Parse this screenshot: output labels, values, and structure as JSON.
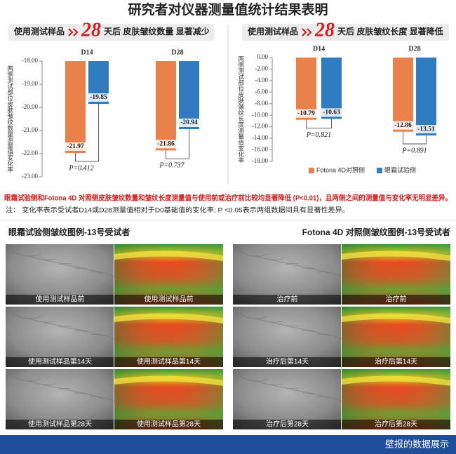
{
  "title": "研究者对仪器测量值统计结果表明",
  "chart_data": [
    {
      "type": "bar",
      "headline": {
        "lead": "使用测试样品",
        "days": 28,
        "rest": "天后 皮肤皱纹数量 显著减少"
      },
      "ylabel": "两侧测试部位皮肤皱纹数量测量值变化率",
      "categories": [
        "D14",
        "D28"
      ],
      "series": [
        {
          "color": "#e8814a",
          "values": [
            -21.97,
            -21.86
          ]
        },
        {
          "color": "#2f7cc0",
          "values": [
            -19.85,
            -20.94
          ]
        }
      ],
      "annotations": [
        "P=0.412",
        "P=0.737"
      ],
      "ylim": [
        -23,
        -18
      ],
      "yticks": [
        {
          "value": -18,
          "label": "-18.00"
        },
        {
          "value": -19,
          "label": "-19.00"
        },
        {
          "value": -20,
          "label": "-20.00"
        },
        {
          "value": -21,
          "label": "-21.00"
        },
        {
          "value": -22,
          "label": "-22.00"
        },
        {
          "value": -23,
          "label": "-23.00"
        }
      ]
    },
    {
      "type": "bar",
      "headline": {
        "lead": "使用测试样品",
        "days": 28,
        "rest": "天后 皮肤皱纹长度 显著降低"
      },
      "ylabel": "两侧测试部位皮肤皱纹长度测量值变化率",
      "categories": [
        "D14",
        "D28"
      ],
      "series": [
        {
          "name": "Fotona 4D对照侧",
          "color": "#e8814a",
          "values": [
            -10.79,
            -12.86
          ]
        },
        {
          "name": "眼霜试验侧",
          "color": "#2f7cc0",
          "values": [
            -10.63,
            -13.51
          ]
        }
      ],
      "annotations": [
        "P=0.821",
        "P=0.891"
      ],
      "legend": "bottom",
      "ylim": [
        -18,
        0
      ],
      "yticks": [
        {
          "value": 0,
          "label": "0.00"
        },
        {
          "value": -2,
          "label": "-2.00"
        },
        {
          "value": -4,
          "label": "-4.00"
        },
        {
          "value": -6,
          "label": "-6.00"
        },
        {
          "value": -8,
          "label": "-8.00"
        },
        {
          "value": -10,
          "label": "-10.00"
        },
        {
          "value": -12,
          "label": "-12.00"
        },
        {
          "value": -14,
          "label": "-14.00"
        },
        {
          "value": -16,
          "label": "-16.00"
        },
        {
          "value": -18,
          "label": "-18.00"
        }
      ]
    }
  ],
  "conclusion": "眼霜试验侧和Fotona 4D 对照侧皮肤皱纹数量和皱纹长度测量值与使用前或治疗前比较均显著降低 (P<0.01)，且两侧之间的测量值与变化率无明显差异。",
  "note": "注：  变化率表示受试者D14或D28测量值相对于D0基础值的变化率; P <0.05表示两组数据间具有显著性差异。",
  "panels": [
    {
      "heading": "眼霜试验侧皱纹图例-13号受试者",
      "rows": [
        [
          "使用测试样品前",
          "使用测试样品前"
        ],
        [
          "使用测试样品第14天",
          "使用测试样品第14天"
        ],
        [
          "使用测试样品第28天",
          "使用测试样品第28天"
        ]
      ]
    },
    {
      "heading": "Fotona 4D 对照侧皱纹图例-13号受试者",
      "rows": [
        [
          "治疗前",
          "治疗前"
        ],
        [
          "治疗后第14天",
          "治疗后第14天"
        ],
        [
          "治疗后第28天",
          "治疗后第28天"
        ]
      ]
    }
  ],
  "footer": "壁报的数据展示"
}
